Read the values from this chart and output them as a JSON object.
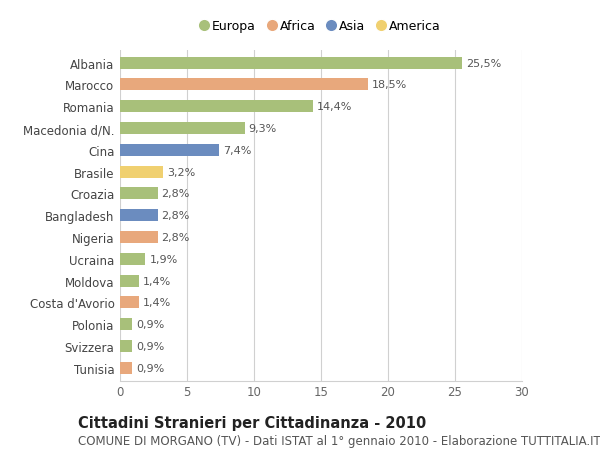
{
  "countries": [
    "Albania",
    "Marocco",
    "Romania",
    "Macedonia d/N.",
    "Cina",
    "Brasile",
    "Croazia",
    "Bangladesh",
    "Nigeria",
    "Ucraina",
    "Moldova",
    "Costa d'Avorio",
    "Polonia",
    "Svizzera",
    "Tunisia"
  ],
  "values": [
    25.5,
    18.5,
    14.4,
    9.3,
    7.4,
    3.2,
    2.8,
    2.8,
    2.8,
    1.9,
    1.4,
    1.4,
    0.9,
    0.9,
    0.9
  ],
  "labels": [
    "25,5%",
    "18,5%",
    "14,4%",
    "9,3%",
    "7,4%",
    "3,2%",
    "2,8%",
    "2,8%",
    "2,8%",
    "1,9%",
    "1,4%",
    "1,4%",
    "0,9%",
    "0,9%",
    "0,9%"
  ],
  "continents": [
    "Europa",
    "Africa",
    "Europa",
    "Europa",
    "Asia",
    "America",
    "Europa",
    "Asia",
    "Africa",
    "Europa",
    "Europa",
    "Africa",
    "Europa",
    "Europa",
    "Africa"
  ],
  "colors": {
    "Europa": "#a8c07a",
    "Africa": "#e8a87c",
    "Asia": "#6b8cbf",
    "America": "#f0d070"
  },
  "xlim": [
    0,
    30
  ],
  "xticks": [
    0,
    5,
    10,
    15,
    20,
    25,
    30
  ],
  "title": "Cittadini Stranieri per Cittadinanza - 2010",
  "subtitle": "COMUNE DI MORGANO (TV) - Dati ISTAT al 1° gennaio 2010 - Elaborazione TUTTITALIA.IT",
  "background_color": "#ffffff",
  "grid_color": "#d0d0d0",
  "bar_height": 0.55,
  "title_fontsize": 10.5,
  "subtitle_fontsize": 8.5,
  "label_fontsize": 8,
  "tick_fontsize": 8.5,
  "legend_fontsize": 9
}
